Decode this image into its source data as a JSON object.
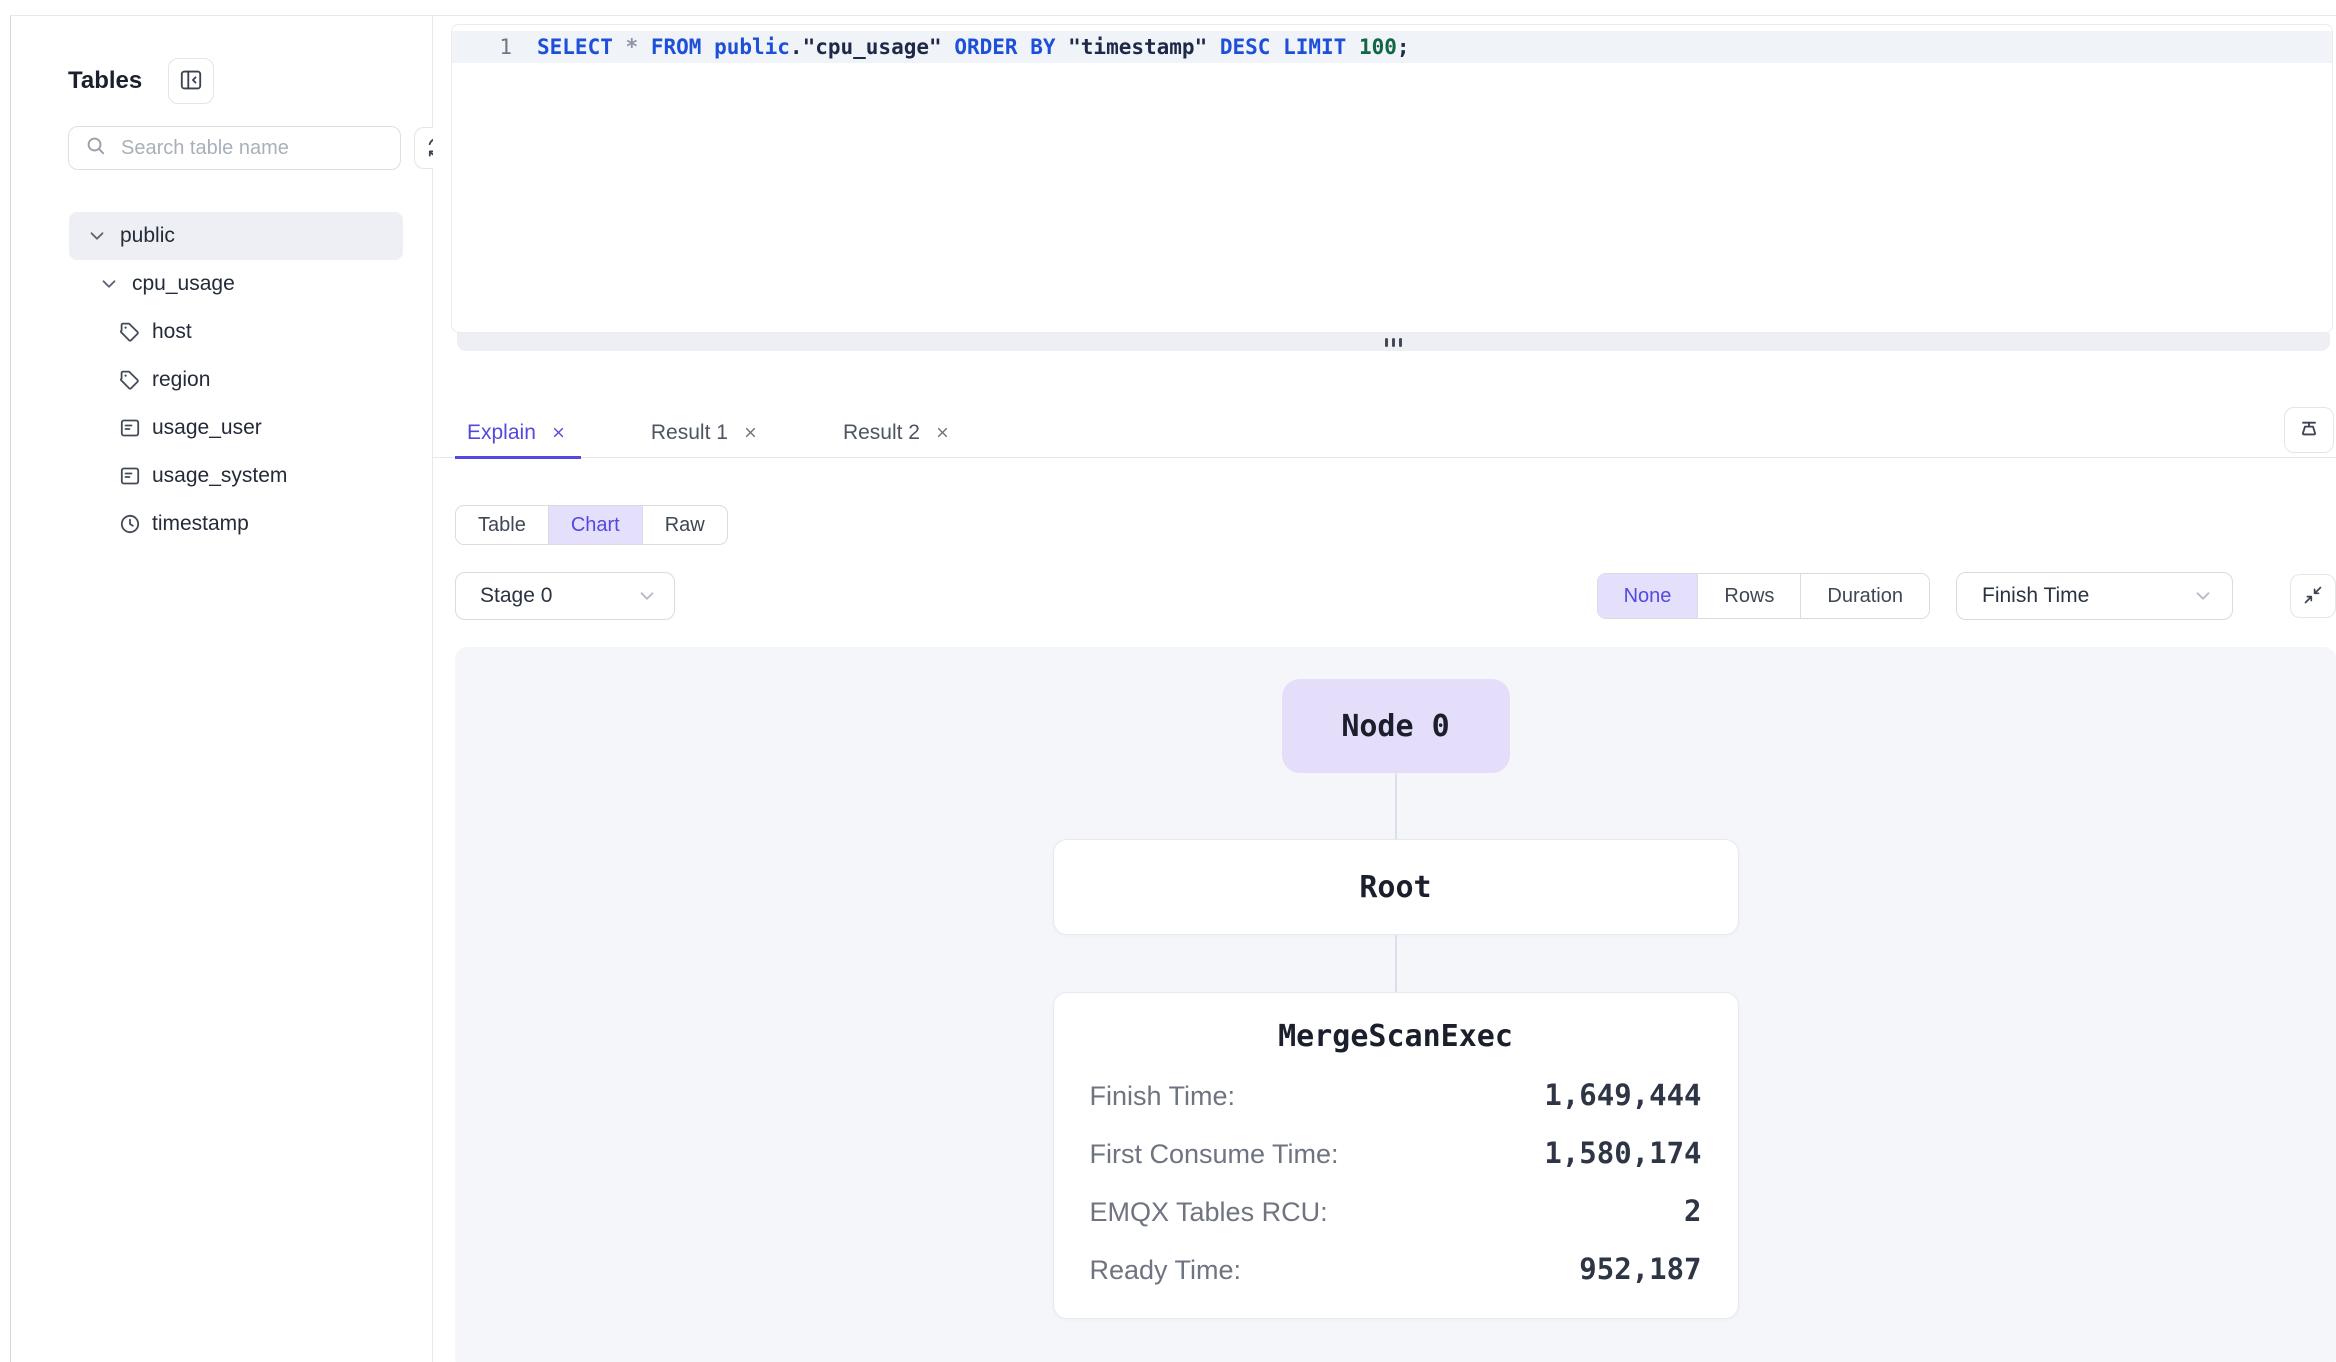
{
  "sidebar": {
    "title": "Tables",
    "search": {
      "placeholder": "Search table name",
      "value": ""
    },
    "tree": [
      {
        "label": "public",
        "level": 0,
        "icon": "chevron-down-icon",
        "expanded": true,
        "selected": true
      },
      {
        "label": "cpu_usage",
        "level": 1,
        "icon": "chevron-down-icon",
        "expanded": true,
        "selected": false
      },
      {
        "label": "host",
        "level": 2,
        "icon": "tag-icon",
        "selected": false
      },
      {
        "label": "region",
        "level": 2,
        "icon": "tag-icon",
        "selected": false
      },
      {
        "label": "usage_user",
        "level": 2,
        "icon": "field-icon",
        "selected": false
      },
      {
        "label": "usage_system",
        "level": 2,
        "icon": "field-icon",
        "selected": false
      },
      {
        "label": "timestamp",
        "level": 2,
        "icon": "clock-icon",
        "selected": false
      }
    ]
  },
  "editor": {
    "line_number": "1",
    "sql": "SELECT * FROM public.\"cpu_usage\" ORDER BY \"timestamp\" DESC LIMIT 100;",
    "tokens": [
      {
        "text": "SELECT",
        "type": "keyword"
      },
      {
        "text": " ",
        "type": "plain"
      },
      {
        "text": "*",
        "type": "operator"
      },
      {
        "text": " ",
        "type": "plain"
      },
      {
        "text": "FROM",
        "type": "keyword"
      },
      {
        "text": " ",
        "type": "plain"
      },
      {
        "text": "public",
        "type": "keyword"
      },
      {
        "text": ".",
        "type": "plain"
      },
      {
        "text": "\"cpu_usage\"",
        "type": "identifier"
      },
      {
        "text": " ",
        "type": "plain"
      },
      {
        "text": "ORDER",
        "type": "keyword"
      },
      {
        "text": " ",
        "type": "plain"
      },
      {
        "text": "BY",
        "type": "keyword"
      },
      {
        "text": " ",
        "type": "plain"
      },
      {
        "text": "\"timestamp\"",
        "type": "identifier"
      },
      {
        "text": " ",
        "type": "plain"
      },
      {
        "text": "DESC",
        "type": "keyword"
      },
      {
        "text": " ",
        "type": "plain"
      },
      {
        "text": "LIMIT",
        "type": "keyword"
      },
      {
        "text": " ",
        "type": "plain"
      },
      {
        "text": "100",
        "type": "number"
      },
      {
        "text": ";",
        "type": "plain"
      }
    ]
  },
  "result_tabs": [
    {
      "label": "Explain",
      "active": true,
      "closable": true
    },
    {
      "label": "Result 1",
      "active": false,
      "closable": true
    },
    {
      "label": "Result 2",
      "active": false,
      "closable": true
    }
  ],
  "view_toggle": {
    "options": [
      "Table",
      "Chart",
      "Raw"
    ],
    "selected": "Chart"
  },
  "stage_select": {
    "value": "Stage 0"
  },
  "metric_toggle": {
    "options": [
      "None",
      "Rows",
      "Duration"
    ],
    "selected": "None"
  },
  "sort_select": {
    "value": "Finish Time"
  },
  "explain_tree": {
    "stage_node": "Node 0",
    "nodes": [
      {
        "name": "Root",
        "metrics": []
      },
      {
        "name": "MergeScanExec",
        "metrics": [
          {
            "label": "Finish Time:",
            "value": "1,649,444"
          },
          {
            "label": "First Consume Time:",
            "value": "1,580,174"
          },
          {
            "label": "EMQX Tables RCU:",
            "value": "2"
          },
          {
            "label": "Ready Time:",
            "value": "952,187"
          }
        ]
      }
    ]
  },
  "icons": [
    "panel-collapse-icon",
    "search-icon",
    "refresh-icon",
    "chevron-down-icon",
    "tag-icon",
    "field-icon",
    "clock-icon",
    "close-icon",
    "clear-icon",
    "collapse-arrows-icon",
    "drag-handle-dots"
  ],
  "colors": {
    "accent": "#5349e0",
    "accent_bg": "#e4e0fb",
    "canvas_bg": "#f5f6fa",
    "node_bg": "#e4defb",
    "line_highlight": "#f0f3f8",
    "code_keyword": "#1d4fd8",
    "code_number": "#116644",
    "selected_row_bg": "#edeff4"
  }
}
